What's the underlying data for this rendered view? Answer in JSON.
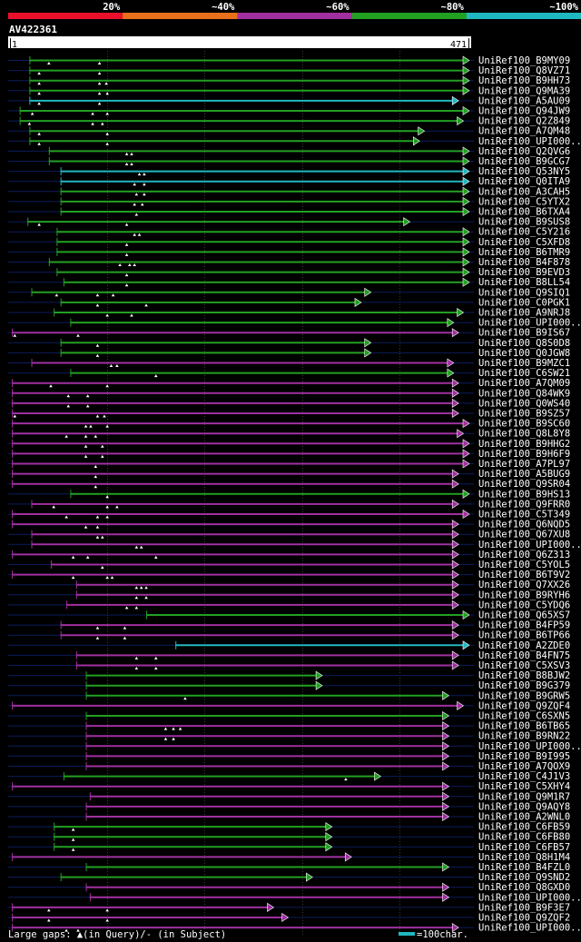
{
  "chart_data": {
    "type": "alignment-overview",
    "query": {
      "id": "AV422361",
      "start": "1",
      "end": "471",
      "length": 471
    },
    "identity_legend": [
      {
        "label": "20%",
        "color": "#e8102a"
      },
      {
        "label": "~40%",
        "color": "#e8701a"
      },
      {
        "label": "~60%",
        "color": "#a030a0"
      },
      {
        "label": "~80%",
        "color": "#22a022"
      },
      {
        "label": "~100%",
        "color": "#20b8c0"
      }
    ],
    "footer": {
      "gaps_text": "Large gaps: ▲(in Query)/- (in Subject)",
      "scale_text": "=100char.",
      "scale_chars": 100
    },
    "hits": [
      {
        "name": "UniRef100_B9MY09",
        "start": 20,
        "end": 471,
        "identity": 80,
        "marks": [
          40,
          92
        ]
      },
      {
        "name": "UniRef100_Q8VZ71",
        "start": 20,
        "end": 471,
        "identity": 80,
        "marks": [
          30,
          92
        ]
      },
      {
        "name": "UniRef100_B9HH73",
        "start": 20,
        "end": 471,
        "identity": 80,
        "marks": [
          30,
          92,
          99
        ]
      },
      {
        "name": "UniRef100_Q9MA39",
        "start": 20,
        "end": 471,
        "identity": 80,
        "marks": [
          30,
          92,
          100
        ]
      },
      {
        "name": "UniRef100_A5AU09",
        "start": 20,
        "end": 460,
        "identity": 100,
        "marks": [
          30,
          92
        ]
      },
      {
        "name": "UniRef100_Q94JW9",
        "start": 10,
        "end": 471,
        "identity": 80,
        "marks": [
          23,
          85,
          100
        ]
      },
      {
        "name": "UniRef100_Q2Z849",
        "start": 10,
        "end": 465,
        "identity": 80,
        "marks": [
          20,
          85,
          95
        ]
      },
      {
        "name": "UniRef100_A7QM48",
        "start": 20,
        "end": 425,
        "identity": 80,
        "marks": [
          30,
          100
        ]
      },
      {
        "name": "UniRef100_UPI000..",
        "start": 20,
        "end": 420,
        "identity": 80,
        "marks": [
          30,
          100
        ]
      },
      {
        "name": "UniRef100_Q2QVG6",
        "start": 40,
        "end": 471,
        "identity": 80,
        "marks": [
          120,
          125
        ]
      },
      {
        "name": "UniRef100_B9GCG7",
        "start": 40,
        "end": 471,
        "identity": 80,
        "marks": [
          120,
          125
        ]
      },
      {
        "name": "UniRef100_Q53NY5",
        "start": 52,
        "end": 471,
        "identity": 100,
        "marks": [
          133,
          138
        ]
      },
      {
        "name": "UniRef100_Q0ITA9",
        "start": 52,
        "end": 471,
        "identity": 100,
        "marks": [
          128,
          138
        ]
      },
      {
        "name": "UniRef100_A3CAH5",
        "start": 52,
        "end": 471,
        "identity": 80,
        "marks": [
          130,
          138
        ]
      },
      {
        "name": "UniRef100_C5YTX2",
        "start": 52,
        "end": 471,
        "identity": 80,
        "marks": [
          128,
          136
        ]
      },
      {
        "name": "UniRef100_B6TXA4",
        "start": 52,
        "end": 471,
        "identity": 80,
        "marks": [
          130
        ]
      },
      {
        "name": "UniRef100_B9SUS8",
        "start": 18,
        "end": 410,
        "identity": 80,
        "marks": [
          30,
          120
        ]
      },
      {
        "name": "UniRef100_C5Y216",
        "start": 48,
        "end": 471,
        "identity": 80,
        "marks": [
          128,
          133
        ]
      },
      {
        "name": "UniRef100_C5XFD8",
        "start": 48,
        "end": 471,
        "identity": 80,
        "marks": [
          120
        ]
      },
      {
        "name": "UniRef100_B6TMR9",
        "start": 48,
        "end": 471,
        "identity": 80,
        "marks": [
          120
        ]
      },
      {
        "name": "UniRef100_B4F878",
        "start": 40,
        "end": 471,
        "identity": 80,
        "marks": [
          113,
          123,
          128
        ]
      },
      {
        "name": "UniRef100_B9EVD3",
        "start": 48,
        "end": 471,
        "identity": 80,
        "marks": [
          120
        ]
      },
      {
        "name": "UniRef100_B8LL54",
        "start": 55,
        "end": 471,
        "identity": 80,
        "marks": [
          120
        ]
      },
      {
        "name": "UniRef100_Q9SIQ1",
        "start": 22,
        "end": 370,
        "identity": 80,
        "marks": [
          48,
          90,
          106
        ]
      },
      {
        "name": "UniRef100_C0PGK1",
        "start": 52,
        "end": 360,
        "identity": 80,
        "marks": [
          90,
          140
        ]
      },
      {
        "name": "UniRef100_A9NRJ8",
        "start": 45,
        "end": 465,
        "identity": 80,
        "marks": [
          100,
          125
        ]
      },
      {
        "name": "UniRef100_UPI000..",
        "start": 62,
        "end": 455,
        "identity": 80,
        "marks": []
      },
      {
        "name": "UniRef100_B9IS67",
        "start": 2,
        "end": 460,
        "identity": 60,
        "marks": [
          5,
          70
        ]
      },
      {
        "name": "UniRef100_Q8S0D8",
        "start": 52,
        "end": 370,
        "identity": 80,
        "marks": [
          90
        ]
      },
      {
        "name": "UniRef100_Q0JGW8",
        "start": 52,
        "end": 370,
        "identity": 80,
        "marks": [
          90
        ]
      },
      {
        "name": "UniRef100_B9MZC1",
        "start": 22,
        "end": 455,
        "identity": 60,
        "marks": [
          104,
          110
        ]
      },
      {
        "name": "UniRef100_C6SW21",
        "start": 62,
        "end": 455,
        "identity": 80,
        "marks": [
          150
        ]
      },
      {
        "name": "UniRef100_A7QM09",
        "start": 2,
        "end": 460,
        "identity": 60,
        "marks": [
          42,
          100
        ]
      },
      {
        "name": "UniRef100_Q84WK9",
        "start": 2,
        "end": 460,
        "identity": 60,
        "marks": [
          60,
          80
        ]
      },
      {
        "name": "UniRef100_Q0WS40",
        "start": 2,
        "end": 460,
        "identity": 60,
        "marks": [
          60,
          80
        ]
      },
      {
        "name": "UniRef100_B9SZ57",
        "start": 2,
        "end": 460,
        "identity": 60,
        "marks": [
          5,
          90,
          97
        ]
      },
      {
        "name": "UniRef100_B9SC60",
        "start": 2,
        "end": 471,
        "identity": 60,
        "marks": [
          78,
          83,
          100
        ]
      },
      {
        "name": "UniRef100_Q8L8Y8",
        "start": 2,
        "end": 465,
        "identity": 60,
        "marks": [
          58,
          78,
          88
        ]
      },
      {
        "name": "UniRef100_B9HHG2",
        "start": 2,
        "end": 471,
        "identity": 60,
        "marks": [
          78,
          95
        ]
      },
      {
        "name": "UniRef100_B9H6F9",
        "start": 2,
        "end": 471,
        "identity": 60,
        "marks": [
          78,
          95
        ]
      },
      {
        "name": "UniRef100_A7PL97",
        "start": 2,
        "end": 471,
        "identity": 60,
        "marks": [
          88
        ]
      },
      {
        "name": "UniRef100_A5BUG9",
        "start": 2,
        "end": 460,
        "identity": 60,
        "marks": [
          88
        ]
      },
      {
        "name": "UniRef100_Q9SR04",
        "start": 2,
        "end": 460,
        "identity": 60,
        "marks": [
          88
        ]
      },
      {
        "name": "UniRef100_B9HS13",
        "start": 62,
        "end": 471,
        "identity": 80,
        "marks": [
          100
        ]
      },
      {
        "name": "UniRef100_Q9FRR0",
        "start": 22,
        "end": 460,
        "identity": 60,
        "marks": [
          45,
          100,
          110
        ]
      },
      {
        "name": "UniRef100_C5T349",
        "start": 2,
        "end": 471,
        "identity": 60,
        "marks": [
          58,
          90,
          100
        ]
      },
      {
        "name": "UniRef100_Q6NQD5",
        "start": 2,
        "end": 460,
        "identity": 60,
        "marks": [
          78,
          90
        ]
      },
      {
        "name": "UniRef100_Q67XU8",
        "start": 22,
        "end": 460,
        "identity": 60,
        "marks": [
          90,
          95
        ]
      },
      {
        "name": "UniRef100_UPI000..",
        "start": 22,
        "end": 460,
        "identity": 60,
        "marks": [
          130,
          135
        ]
      },
      {
        "name": "UniRef100_Q6Z313",
        "start": 2,
        "end": 460,
        "identity": 60,
        "marks": [
          65,
          80,
          150
        ]
      },
      {
        "name": "UniRef100_C5YOL5",
        "start": 42,
        "end": 460,
        "identity": 60,
        "marks": [
          95
        ]
      },
      {
        "name": "UniRef100_B6T9V2",
        "start": 2,
        "end": 460,
        "identity": 60,
        "marks": [
          65,
          100,
          105
        ]
      },
      {
        "name": "UniRef100_Q7XX26",
        "start": 68,
        "end": 460,
        "identity": 60,
        "marks": [
          130,
          135,
          140
        ]
      },
      {
        "name": "UniRef100_B9RYH6",
        "start": 68,
        "end": 460,
        "identity": 60,
        "marks": [
          130,
          140
        ]
      },
      {
        "name": "UniRef100_C5YDQ6",
        "start": 58,
        "end": 460,
        "identity": 60,
        "marks": [
          120,
          130
        ]
      },
      {
        "name": "UniRef100_Q65XS7",
        "start": 140,
        "end": 471,
        "identity": 80,
        "marks": []
      },
      {
        "name": "UniRef100_B4FP59",
        "start": 52,
        "end": 460,
        "identity": 60,
        "marks": [
          90,
          118
        ]
      },
      {
        "name": "UniRef100_B6TP66",
        "start": 52,
        "end": 460,
        "identity": 60,
        "marks": [
          90,
          118
        ]
      },
      {
        "name": "UniRef100_A2ZDE0",
        "start": 170,
        "end": 471,
        "identity": 100,
        "marks": []
      },
      {
        "name": "UniRef100_B4FN75",
        "start": 68,
        "end": 460,
        "identity": 60,
        "marks": [
          130,
          150
        ]
      },
      {
        "name": "UniRef100_C5XSV3",
        "start": 68,
        "end": 460,
        "identity": 60,
        "marks": [
          130,
          150
        ]
      },
      {
        "name": "UniRef100_B8BJW2",
        "start": 78,
        "end": 320,
        "identity": 80,
        "marks": []
      },
      {
        "name": "UniRef100_B9G379",
        "start": 78,
        "end": 320,
        "identity": 80,
        "marks": []
      },
      {
        "name": "UniRef100_B9GRW5",
        "start": 78,
        "end": 450,
        "identity": 80,
        "marks": [
          180
        ]
      },
      {
        "name": "UniRef100_Q9ZQF4",
        "start": 2,
        "end": 465,
        "identity": 60,
        "marks": []
      },
      {
        "name": "UniRef100_C6SXN5",
        "start": 78,
        "end": 450,
        "identity": 80,
        "marks": []
      },
      {
        "name": "UniRef100_B6TB65",
        "start": 78,
        "end": 450,
        "identity": 60,
        "marks": [
          160,
          168,
          175
        ]
      },
      {
        "name": "UniRef100_B9RN22",
        "start": 78,
        "end": 450,
        "identity": 60,
        "marks": [
          160,
          168
        ]
      },
      {
        "name": "UniRef100_UPI000..",
        "start": 78,
        "end": 450,
        "identity": 60,
        "marks": []
      },
      {
        "name": "UniRef100_B9I995",
        "start": 78,
        "end": 450,
        "identity": 60,
        "marks": []
      },
      {
        "name": "UniRef100_A7QOX9",
        "start": 78,
        "end": 450,
        "identity": 60,
        "marks": []
      },
      {
        "name": "UniRef100_C4J1V3",
        "start": 55,
        "end": 380,
        "identity": 80,
        "marks": [
          345
        ]
      },
      {
        "name": "UniRef100_C5XHY4",
        "start": 2,
        "end": 450,
        "identity": 60,
        "marks": []
      },
      {
        "name": "UniRef100_Q9M1R7",
        "start": 82,
        "end": 450,
        "identity": 60,
        "marks": []
      },
      {
        "name": "UniRef100_Q9AQY8",
        "start": 78,
        "end": 450,
        "identity": 60,
        "marks": []
      },
      {
        "name": "UniRef100_A2WNL0",
        "start": 78,
        "end": 450,
        "identity": 60,
        "marks": []
      },
      {
        "name": "UniRef100_C6FB59",
        "start": 45,
        "end": 330,
        "identity": 80,
        "marks": [
          65
        ]
      },
      {
        "name": "UniRef100_C6FB80",
        "start": 45,
        "end": 330,
        "identity": 80,
        "marks": [
          65
        ]
      },
      {
        "name": "UniRef100_C6FB57",
        "start": 45,
        "end": 330,
        "identity": 80,
        "marks": [
          65
        ]
      },
      {
        "name": "UniRef100_Q8H1M4",
        "start": 2,
        "end": 350,
        "identity": 60,
        "marks": []
      },
      {
        "name": "UniRef100_B4FZL0",
        "start": 78,
        "end": 450,
        "identity": 80,
        "marks": []
      },
      {
        "name": "UniRef100_Q9SND2",
        "start": 52,
        "end": 310,
        "identity": 80,
        "marks": []
      },
      {
        "name": "UniRef100_Q8GXD0",
        "start": 78,
        "end": 450,
        "identity": 60,
        "marks": []
      },
      {
        "name": "UniRef100_UPI000..",
        "start": 82,
        "end": 450,
        "identity": 60,
        "marks": []
      },
      {
        "name": "UniRef100_B9F3E7",
        "start": 2,
        "end": 270,
        "identity": 60,
        "marks": [
          40,
          100
        ]
      },
      {
        "name": "UniRef100_Q9ZQF2",
        "start": 2,
        "end": 285,
        "identity": 60,
        "marks": [
          40,
          100
        ]
      },
      {
        "name": "UniRef100_UPI000..",
        "start": 2,
        "end": 460,
        "identity": 60,
        "marks": [
          58,
          70
        ]
      }
    ]
  }
}
